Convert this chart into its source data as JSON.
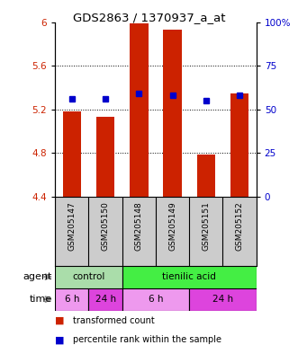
{
  "title": "GDS2863 / 1370937_a_at",
  "samples": [
    "GSM205147",
    "GSM205150",
    "GSM205148",
    "GSM205149",
    "GSM205151",
    "GSM205152"
  ],
  "bar_values": [
    5.18,
    5.13,
    5.99,
    5.93,
    4.79,
    5.35
  ],
  "percentile_values": [
    5.3,
    5.3,
    5.35,
    5.33,
    5.28,
    5.33
  ],
  "bar_bottom": 4.4,
  "ylim": [
    4.4,
    6.0
  ],
  "yticks_left": [
    4.4,
    4.8,
    5.2,
    5.6,
    6.0
  ],
  "ytick_labels_left": [
    "4.4",
    "4.8",
    "5.2",
    "5.6",
    "6"
  ],
  "ytick_labels_right": [
    "0",
    "25",
    "50",
    "75",
    "100%"
  ],
  "bar_color": "#cc2200",
  "percentile_color": "#0000cc",
  "sample_bg_color": "#cccccc",
  "plot_bg": "#ffffff",
  "agent_row": [
    {
      "label": "control",
      "start": 0,
      "end": 2,
      "color": "#aaddaa"
    },
    {
      "label": "tienilic acid",
      "start": 2,
      "end": 6,
      "color": "#44ee44"
    }
  ],
  "time_row": [
    {
      "label": "6 h",
      "start": 0,
      "end": 1,
      "color": "#ee99ee"
    },
    {
      "label": "24 h",
      "start": 1,
      "end": 2,
      "color": "#dd44dd"
    },
    {
      "label": "6 h",
      "start": 2,
      "end": 4,
      "color": "#ee99ee"
    },
    {
      "label": "24 h",
      "start": 4,
      "end": 6,
      "color": "#dd44dd"
    }
  ],
  "legend_bar_label": "transformed count",
  "legend_pct_label": "percentile rank within the sample"
}
